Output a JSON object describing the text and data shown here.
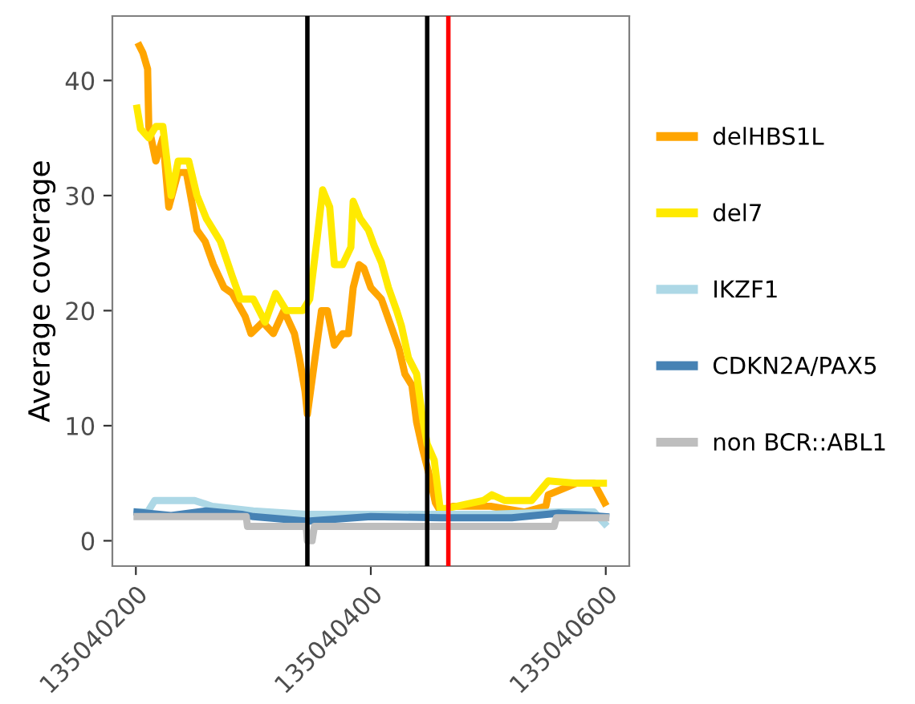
{
  "chart_data": {
    "type": "line",
    "ylabel": "Average coverage",
    "xlim": [
      135040180,
      135040620
    ],
    "xticks": [
      135040200,
      135040400,
      135040600
    ],
    "ylim": [
      -2.2,
      45.6
    ],
    "yticks": [
      0,
      10,
      20,
      30,
      40
    ],
    "grid": false,
    "legend": "right",
    "series": [
      {
        "name": "delHBS1L",
        "color": "#ffa500",
        "x": [
          135040203,
          135040206,
          135040210,
          135040211,
          135040217,
          135040223,
          135040228,
          135040236,
          135040243,
          135040252,
          135040259,
          135040266,
          135040275,
          135040282,
          135040293,
          135040298,
          135040308,
          135040317,
          135040326,
          135040335,
          135040339,
          135040344,
          135040346,
          135040354,
          135040358,
          135040363,
          135040369,
          135040376,
          135040381,
          135040385,
          135040390,
          135040394,
          135040400,
          135040409,
          135040416,
          135040424,
          135040429,
          135040435,
          135040439,
          135040444,
          135040450,
          135040455,
          135040459,
          135040470,
          135040502,
          135040531,
          135040549,
          135040551,
          135040575,
          135040590,
          135040599
        ],
        "values": [
          43,
          42.4,
          41,
          36,
          33,
          35,
          29,
          32,
          32,
          27,
          26,
          24,
          22,
          21.5,
          19.5,
          18,
          19,
          18,
          20,
          18,
          16,
          13,
          11,
          17,
          20,
          20,
          17,
          18,
          18,
          22,
          24,
          23.7,
          22,
          21,
          19,
          16.7,
          14.5,
          13.5,
          10.3,
          8,
          5.6,
          3.3,
          2.6,
          3,
          3,
          2.5,
          3,
          4,
          5,
          5,
          3.3
        ]
      },
      {
        "name": "del7",
        "color": "#ffea00",
        "x": [
          135040201,
          135040204,
          135040211,
          135040217,
          135040223,
          135040230,
          135040236,
          135040245,
          135040252,
          135040260,
          135040272,
          135040282,
          135040289,
          135040300,
          135040310,
          135040319,
          135040328,
          135040342,
          135040348,
          135040354,
          135040359,
          135040365,
          135040369,
          135040376,
          135040383,
          135040385,
          135040391,
          135040398,
          135040403,
          135040409,
          135040415,
          135040422,
          135040426,
          135040432,
          135040439,
          135040444,
          135040448,
          135040454,
          135040459,
          135040464,
          135040496,
          135040503,
          135040514,
          135040537,
          135040551,
          135040575,
          135040598
        ],
        "values": [
          37.6,
          35.8,
          35,
          36,
          36,
          30,
          33,
          33,
          30,
          28,
          26,
          23,
          21,
          21,
          19,
          21.5,
          20,
          20,
          21,
          26,
          30.5,
          29,
          24,
          24,
          25.5,
          29.5,
          28,
          27,
          25.6,
          24.2,
          22,
          20,
          18.7,
          15.9,
          14.5,
          10.7,
          8.4,
          7,
          2.8,
          2.8,
          3.5,
          4,
          3.5,
          3.5,
          5.2,
          5,
          5
        ]
      },
      {
        "name": "IKZF1",
        "color": "#add8e6",
        "x": [
          135040201,
          135040210,
          135040216,
          135040250,
          135040265,
          135040300,
          135040345,
          135040400,
          135040500,
          135040560,
          135040590,
          135040599
        ],
        "values": [
          2.5,
          2.5,
          3.5,
          3.5,
          3,
          2.6,
          2.3,
          2.3,
          2.3,
          2.5,
          2.5,
          1.5
        ]
      },
      {
        "name": "CDKN2A/PAX5",
        "color": "#4682b4",
        "x": [
          135040201,
          135040230,
          135040260,
          135040290,
          135040300,
          135040346,
          135040400,
          135040460,
          135040520,
          135040560,
          135040600
        ],
        "values": [
          2.5,
          2.2,
          2.6,
          2.3,
          2.1,
          1.7,
          2.1,
          2,
          2,
          2.4,
          2.1
        ]
      },
      {
        "name": "non BCR::ABL1",
        "color": "#bebebe",
        "x": [
          135040201,
          135040294,
          135040295,
          135040345,
          135040346,
          135040350,
          135040352,
          135040556,
          135040558,
          135040600
        ],
        "values": [
          2.1,
          2.1,
          1.25,
          1.25,
          0,
          0,
          1.25,
          1.25,
          2,
          2
        ]
      }
    ],
    "ref_lines": [
      {
        "axis": "x",
        "value": 135040346,
        "color": "#000000",
        "line_style": "solid"
      },
      {
        "axis": "x",
        "value": 135040448,
        "color": "#000000",
        "line_style": "solid"
      },
      {
        "axis": "x",
        "value": 135040466,
        "color": "#ff0000",
        "line_style": "solid"
      }
    ]
  }
}
